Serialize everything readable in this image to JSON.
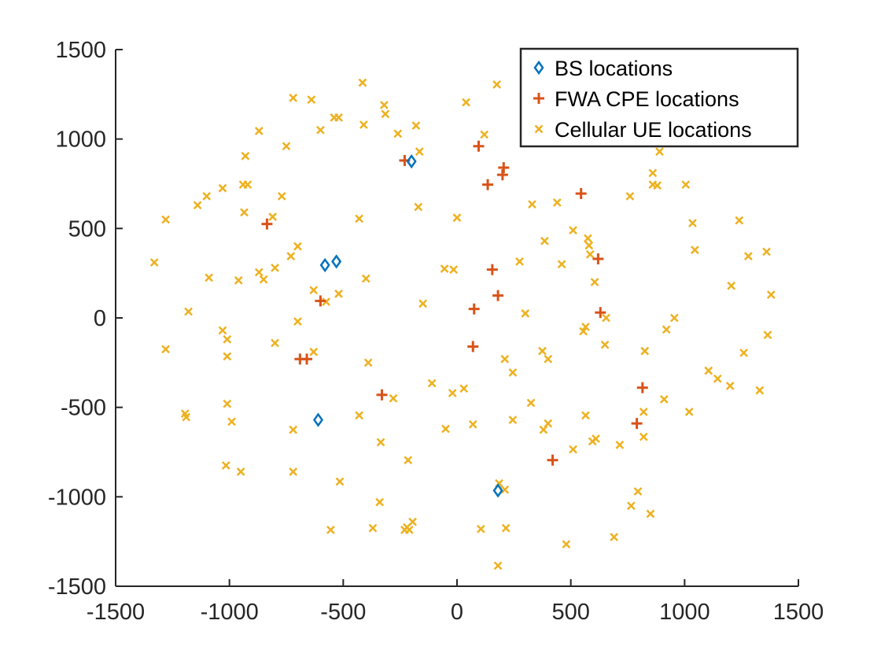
{
  "chart_data": {
    "type": "scatter",
    "title": "",
    "xlabel": "",
    "ylabel": "",
    "xlim": [
      -1500,
      1500
    ],
    "ylim": [
      -1500,
      1500
    ],
    "xticks": [
      -1500,
      -1000,
      -500,
      0,
      500,
      1000,
      1500
    ],
    "yticks": [
      -1500,
      -1000,
      -500,
      0,
      500,
      1000,
      1500
    ],
    "grid": false,
    "box": false,
    "legend_position": "top-right",
    "series": [
      {
        "name": "BS locations",
        "marker": "diamond",
        "color": "#0072BD",
        "points": [
          [
            -200,
            875
          ],
          [
            -580,
            295
          ],
          [
            -530,
            315
          ],
          [
            -610,
            -570
          ],
          [
            180,
            -965
          ]
        ]
      },
      {
        "name": "FWA CPE locations",
        "marker": "plus",
        "color": "#D95319",
        "points": [
          [
            -230,
            880
          ],
          [
            95,
            960
          ],
          [
            205,
            840
          ],
          [
            200,
            800
          ],
          [
            135,
            745
          ],
          [
            545,
            695
          ],
          [
            -835,
            525
          ],
          [
            620,
            330
          ],
          [
            155,
            270
          ],
          [
            180,
            125
          ],
          [
            -600,
            95
          ],
          [
            75,
            50
          ],
          [
            630,
            30
          ],
          [
            70,
            -160
          ],
          [
            -690,
            -230
          ],
          [
            -660,
            -230
          ],
          [
            -330,
            -430
          ],
          [
            815,
            -390
          ],
          [
            790,
            -590
          ],
          [
            420,
            -795
          ]
        ]
      },
      {
        "name": "Cellular UE locations",
        "marker": "x",
        "color": "#EDB120",
        "points": [
          [
            -415,
            1315
          ],
          [
            175,
            1305
          ],
          [
            -720,
            1230
          ],
          [
            -640,
            1220
          ],
          [
            -320,
            1190
          ],
          [
            40,
            1205
          ],
          [
            -540,
            1120
          ],
          [
            -520,
            1120
          ],
          [
            -315,
            1140
          ],
          [
            -600,
            1050
          ],
          [
            -410,
            1080
          ],
          [
            -180,
            1075
          ],
          [
            -870,
            1045
          ],
          [
            -260,
            1030
          ],
          [
            120,
            1025
          ],
          [
            -750,
            960
          ],
          [
            -165,
            930
          ],
          [
            -930,
            905
          ],
          [
            890,
            930
          ],
          [
            -940,
            745
          ],
          [
            -920,
            745
          ],
          [
            860,
            810
          ],
          [
            860,
            745
          ],
          [
            880,
            740
          ],
          [
            1005,
            745
          ],
          [
            -1030,
            725
          ],
          [
            -770,
            680
          ],
          [
            -1100,
            680
          ],
          [
            760,
            680
          ],
          [
            -1140,
            630
          ],
          [
            330,
            635
          ],
          [
            440,
            645
          ],
          [
            -170,
            620
          ],
          [
            -935,
            590
          ],
          [
            -810,
            565
          ],
          [
            -430,
            555
          ],
          [
            0,
            560
          ],
          [
            -1280,
            550
          ],
          [
            1035,
            530
          ],
          [
            1240,
            545
          ],
          [
            510,
            490
          ],
          [
            575,
            445
          ],
          [
            385,
            430
          ],
          [
            -700,
            400
          ],
          [
            580,
            405
          ],
          [
            585,
            355
          ],
          [
            1045,
            380
          ],
          [
            -730,
            345
          ],
          [
            1280,
            345
          ],
          [
            1360,
            370
          ],
          [
            -1330,
            310
          ],
          [
            275,
            315
          ],
          [
            -800,
            280
          ],
          [
            -870,
            255
          ],
          [
            -15,
            270
          ],
          [
            -55,
            275
          ],
          [
            605,
            200
          ],
          [
            -850,
            215
          ],
          [
            -960,
            210
          ],
          [
            -400,
            220
          ],
          [
            460,
            300
          ],
          [
            -1090,
            225
          ],
          [
            -630,
            155
          ],
          [
            -520,
            135
          ],
          [
            1205,
            180
          ],
          [
            -150,
            80
          ],
          [
            -575,
            90
          ],
          [
            1380,
            130
          ],
          [
            -1180,
            35
          ],
          [
            300,
            25
          ],
          [
            655,
            0
          ],
          [
            955,
            0
          ],
          [
            -700,
            -20
          ],
          [
            -1030,
            -70
          ],
          [
            565,
            -50
          ],
          [
            555,
            -75
          ],
          [
            920,
            -65
          ],
          [
            -1010,
            -120
          ],
          [
            375,
            -185
          ],
          [
            650,
            -150
          ],
          [
            -800,
            -140
          ],
          [
            1365,
            -95
          ],
          [
            -1280,
            -175
          ],
          [
            -630,
            -190
          ],
          [
            825,
            -185
          ],
          [
            -1010,
            -215
          ],
          [
            210,
            -230
          ],
          [
            1260,
            -195
          ],
          [
            -390,
            -250
          ],
          [
            400,
            -230
          ],
          [
            1105,
            -295
          ],
          [
            245,
            -305
          ],
          [
            1145,
            -340
          ],
          [
            -110,
            -365
          ],
          [
            1200,
            -380
          ],
          [
            1330,
            -405
          ],
          [
            30,
            -395
          ],
          [
            -20,
            -420
          ],
          [
            325,
            -475
          ],
          [
            -280,
            -450
          ],
          [
            910,
            -455
          ],
          [
            -1010,
            -480
          ],
          [
            -430,
            -545
          ],
          [
            820,
            -525
          ],
          [
            1020,
            -525
          ],
          [
            -1195,
            -535
          ],
          [
            -1190,
            -555
          ],
          [
            565,
            -545
          ],
          [
            -990,
            -580
          ],
          [
            245,
            -570
          ],
          [
            70,
            -595
          ],
          [
            -50,
            -620
          ],
          [
            380,
            -625
          ],
          [
            400,
            -590
          ],
          [
            -720,
            -625
          ],
          [
            610,
            -675
          ],
          [
            820,
            -665
          ],
          [
            595,
            -690
          ],
          [
            -335,
            -695
          ],
          [
            715,
            -710
          ],
          [
            510,
            -735
          ],
          [
            -215,
            -795
          ],
          [
            -1015,
            -825
          ],
          [
            -950,
            -860
          ],
          [
            -720,
            -860
          ],
          [
            -515,
            -915
          ],
          [
            185,
            -925
          ],
          [
            795,
            -970
          ],
          [
            210,
            -960
          ],
          [
            -340,
            -1030
          ],
          [
            765,
            -1050
          ],
          [
            850,
            -1095
          ],
          [
            -195,
            -1140
          ],
          [
            -220,
            -1170
          ],
          [
            -230,
            -1185
          ],
          [
            -210,
            -1185
          ],
          [
            -370,
            -1175
          ],
          [
            215,
            -1175
          ],
          [
            105,
            -1180
          ],
          [
            -555,
            -1185
          ],
          [
            690,
            -1225
          ],
          [
            480,
            -1265
          ],
          [
            180,
            -1385
          ]
        ]
      }
    ]
  }
}
